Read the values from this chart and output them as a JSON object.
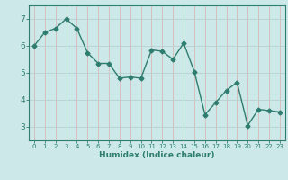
{
  "x": [
    0,
    1,
    2,
    3,
    4,
    5,
    6,
    7,
    8,
    9,
    10,
    11,
    12,
    13,
    14,
    15,
    16,
    17,
    18,
    19,
    20,
    21,
    22,
    23
  ],
  "y": [
    6.0,
    6.5,
    6.65,
    7.0,
    6.65,
    5.75,
    5.35,
    5.35,
    4.8,
    4.85,
    4.8,
    5.85,
    5.8,
    5.5,
    6.1,
    5.05,
    3.45,
    3.9,
    4.35,
    4.65,
    3.05,
    3.65,
    3.6,
    3.55
  ],
  "xlabel": "Humidex (Indice chaleur)",
  "line_color": "#2e7d6e",
  "bg_color": "#cce8e8",
  "grid_color_v": "#d8b8b8",
  "grid_color_h": "#b8d0d0",
  "axis_color": "#2e7d6e",
  "tick_color": "#2e7d6e",
  "xlim": [
    -0.5,
    23.5
  ],
  "ylim": [
    2.5,
    7.5
  ],
  "yticks": [
    3,
    4,
    5,
    6,
    7
  ],
  "xticks": [
    0,
    1,
    2,
    3,
    4,
    5,
    6,
    7,
    8,
    9,
    10,
    11,
    12,
    13,
    14,
    15,
    16,
    17,
    18,
    19,
    20,
    21,
    22,
    23
  ]
}
